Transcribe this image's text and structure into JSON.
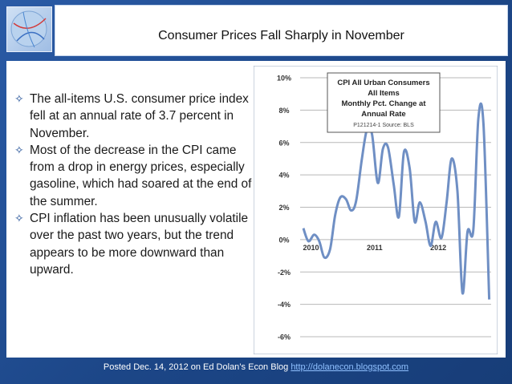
{
  "title": "Consumer Prices Fall Sharply in November",
  "bullets": [
    "The all-items U.S. consumer price index fell at an annual rate of 3.7 percent in November.",
    "Most of the decrease in the CPI came from a drop in energy prices, especially gasoline, which had soared at the end of the summer.",
    "CPI inflation has been unusually volatile over the past two years, but the trend appears to be more downward than upward."
  ],
  "footer": {
    "text": "Posted Dec. 14, 2012 on Ed Dolan’s Econ Blog",
    "link": "http://dolanecon.blogspot.com"
  },
  "colors": {
    "background": "#1e4a8c",
    "line": "#6f8fc4",
    "bullet": "#1f4e96"
  },
  "icons": {
    "bullet": "four-point-star-icon",
    "logo": "globe-logo-icon"
  },
  "chart_data": {
    "type": "line",
    "legend_box": {
      "title_lines": [
        "CPI All Urban Consumers",
        "All Items",
        "Monthly Pct. Change at",
        "Annual Rate"
      ],
      "source": "P121214-1 Source: BLS"
    },
    "y_ticks": [
      "10%",
      "8%",
      "6%",
      "4%",
      "2%",
      "0%",
      "-2%",
      "-4%",
      "-6%"
    ],
    "x_ticks": [
      "2010",
      "2011",
      "2012"
    ],
    "ylim": [
      -6,
      10
    ],
    "xlim": [
      2009.95,
      2012.95
    ],
    "grid": true,
    "points": [
      [
        2010.0,
        0.7
      ],
      [
        2010.08,
        -0.1
      ],
      [
        2010.17,
        0.3
      ],
      [
        2010.25,
        -0.1
      ],
      [
        2010.33,
        -1.1
      ],
      [
        2010.42,
        -0.6
      ],
      [
        2010.5,
        1.5
      ],
      [
        2010.58,
        2.6
      ],
      [
        2010.67,
        2.5
      ],
      [
        2010.75,
        1.8
      ],
      [
        2010.83,
        2.4
      ],
      [
        2010.92,
        5.0
      ],
      [
        2011.0,
        6.8
      ],
      [
        2011.08,
        6.5
      ],
      [
        2011.17,
        3.5
      ],
      [
        2011.25,
        5.6
      ],
      [
        2011.33,
        5.7
      ],
      [
        2011.42,
        3.4
      ],
      [
        2011.5,
        1.4
      ],
      [
        2011.58,
        5.4
      ],
      [
        2011.67,
        4.4
      ],
      [
        2011.75,
        1.1
      ],
      [
        2011.83,
        2.3
      ],
      [
        2011.92,
        1.1
      ],
      [
        2012.0,
        -0.4
      ],
      [
        2012.08,
        1.1
      ],
      [
        2012.17,
        0.1
      ],
      [
        2012.25,
        2.3
      ],
      [
        2012.33,
        5.0
      ],
      [
        2012.42,
        3.0
      ],
      [
        2012.5,
        -3.3
      ],
      [
        2012.58,
        0.5
      ],
      [
        2012.67,
        0.6
      ],
      [
        2012.75,
        7.5
      ],
      [
        2012.83,
        7.1
      ],
      [
        2012.92,
        -3.7
      ]
    ]
  }
}
